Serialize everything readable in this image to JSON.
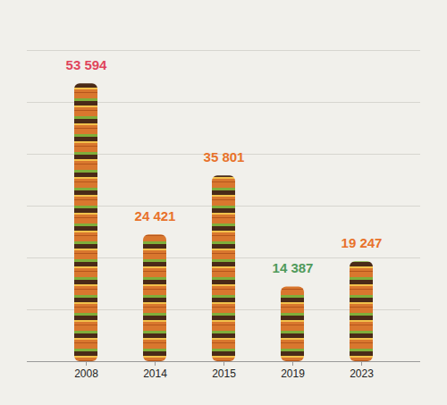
{
  "chart_data": {
    "type": "bar",
    "categories": [
      "2008",
      "2014",
      "2015",
      "2019",
      "2023"
    ],
    "values": [
      53594,
      24421,
      35801,
      14387,
      19247
    ],
    "value_labels": [
      "53 594",
      "24 421",
      "35 801",
      "14 387",
      "19 247"
    ],
    "data_labels": true,
    "color": "#d9772e",
    "colors": [
      "#e0445c",
      "#e8722a",
      "#e8722a",
      "#4f9a5a",
      "#e8722a"
    ],
    "ylim": [
      0,
      60000
    ],
    "yticks": [
      0,
      10000,
      20000,
      30000,
      40000,
      50000,
      60000
    ],
    "grid": true,
    "tick_labels": "x"
  }
}
